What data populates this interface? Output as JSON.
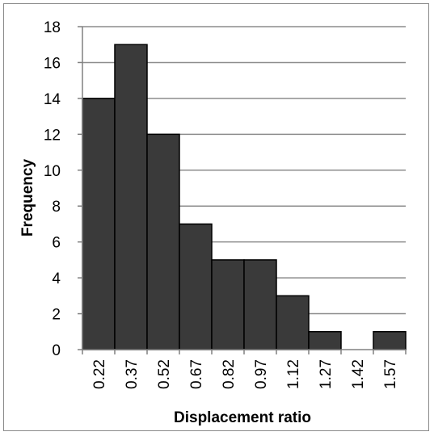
{
  "chart_data": {
    "type": "bar",
    "categories": [
      "0.22",
      "0.37",
      "0.52",
      "0.67",
      "0.82",
      "0.97",
      "1.12",
      "1.27",
      "1.42",
      "1.57"
    ],
    "values": [
      14,
      17,
      12,
      7,
      5,
      5,
      3,
      1,
      0,
      1
    ],
    "xlabel": "Displacement ratio",
    "ylabel": "Frequency",
    "ylim": [
      0,
      18
    ],
    "yticks": [
      0,
      2,
      4,
      6,
      8,
      10,
      12,
      14,
      16,
      18
    ],
    "grid": true,
    "bar_color": "#3a3a3a",
    "bar_edge_color": "#000000",
    "grid_color": "#8c8c8c"
  }
}
